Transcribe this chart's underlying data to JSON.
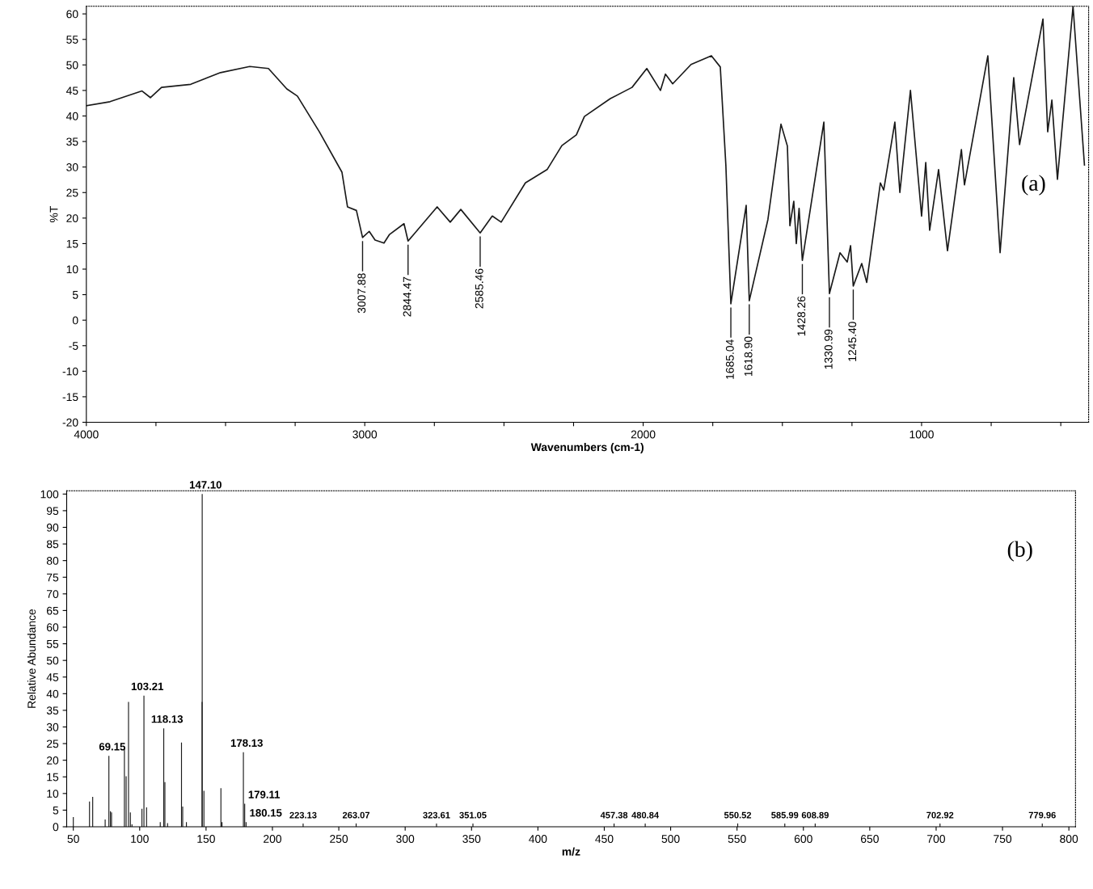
{
  "chart_data": [
    {
      "type": "line",
      "xlabel": "Wavenumbers (cm-1)",
      "ylabel": "%T",
      "color": "#1a1a1a",
      "xlim": [
        4000,
        400
      ],
      "ylim": [
        -20,
        61.5
      ],
      "xticks": [
        4000,
        {
          "value": 3750,
          "label": null
        },
        {
          "value": 3500,
          "label": null
        },
        {
          "value": 3250,
          "label": null
        },
        3000,
        {
          "value": 2750,
          "label": null
        },
        {
          "value": 2500,
          "label": null
        },
        {
          "value": 2250,
          "label": null
        },
        2000,
        {
          "value": 1750,
          "label": null
        },
        {
          "value": 1500,
          "label": null
        },
        {
          "value": 1250,
          "label": null
        },
        1000,
        {
          "value": 750,
          "label": null
        },
        {
          "value": 500,
          "label": null
        }
      ],
      "yticks": [
        -20,
        -15,
        -10,
        -5,
        0,
        5,
        10,
        15,
        20,
        25,
        30,
        35,
        40,
        45,
        50,
        55,
        60
      ],
      "x": [
        4000,
        3915,
        3800,
        3770,
        3730,
        3625,
        3518,
        3413,
        3346,
        3280,
        3242,
        3163,
        3082,
        3062,
        3030,
        3007.88,
        2984,
        2963,
        2931,
        2911,
        2859,
        2844.47,
        2740,
        2693,
        2655,
        2585.46,
        2542,
        2510,
        2423,
        2345,
        2292,
        2240,
        2211,
        2118,
        2040,
        1987,
        1938,
        1920,
        1894,
        1828,
        1755,
        1723,
        1703,
        1685.04,
        1630,
        1618.9,
        1552,
        1505,
        1482,
        1473,
        1459,
        1450,
        1440,
        1428.26,
        1351,
        1330.99,
        1293,
        1267,
        1255,
        1245.4,
        1215,
        1197,
        1148,
        1136,
        1096,
        1078,
        1040,
        1000,
        985,
        971,
        939,
        907,
        857,
        846,
        762,
        718,
        669,
        648,
        564,
        547,
        532,
        512,
        456,
        415
      ],
      "values": [
        42,
        42.8,
        44.9,
        43.6,
        45.6,
        46.2,
        48.5,
        49.7,
        49.3,
        45.3,
        43.9,
        36.9,
        29,
        22.2,
        21.5,
        16.2,
        17.4,
        15.7,
        15.1,
        16.8,
        18.9,
        15.5,
        22.2,
        19.2,
        21.7,
        17.1,
        20.4,
        19.2,
        26.9,
        29.5,
        34.2,
        36.3,
        39.9,
        43.4,
        45.6,
        49.3,
        45,
        48.2,
        46.3,
        50.1,
        51.8,
        49.6,
        30.4,
        3.2,
        22.5,
        3.8,
        19.7,
        38.4,
        34.1,
        18.5,
        23.3,
        15,
        21.9,
        11.7,
        38.8,
        5.2,
        13.2,
        11.4,
        14.6,
        6.7,
        11.1,
        7.4,
        26.9,
        25.5,
        38.8,
        25,
        45,
        20.4,
        30.9,
        17.6,
        29.5,
        13.6,
        33.4,
        26.5,
        51.8,
        13.2,
        47.5,
        34.4,
        59,
        36.9,
        43.1,
        27.6,
        61.5,
        30.4
      ],
      "annotations": [
        {
          "text": "3007.88",
          "x": 3007.88,
          "y": 16.2
        },
        {
          "text": "2844.47",
          "x": 2844.47,
          "y": 15.5
        },
        {
          "text": "2585.46",
          "x": 2585.46,
          "y": 17.1
        },
        {
          "text": "1685.04",
          "x": 1685.04,
          "y": 3.2
        },
        {
          "text": "1618.90",
          "x": 1618.9,
          "y": 3.8
        },
        {
          "text": "1428.26",
          "x": 1428.26,
          "y": 11.7
        },
        {
          "text": "1330.99",
          "x": 1330.99,
          "y": 5.2
        },
        {
          "text": "1245.40",
          "x": 1245.4,
          "y": 6.7
        },
        "(a)"
      ]
    },
    {
      "type": "bar",
      "xlabel": "m/z",
      "ylabel": "Relative Abundance",
      "color": "#1a1a1a",
      "xlim": [
        45,
        805
      ],
      "ylim": [
        0,
        101
      ],
      "xticks": [
        50,
        100,
        150,
        200,
        250,
        300,
        350,
        400,
        450,
        500,
        550,
        600,
        650,
        700,
        750,
        800
      ],
      "yticks": [
        0,
        5,
        10,
        15,
        20,
        25,
        30,
        35,
        40,
        45,
        50,
        55,
        60,
        65,
        70,
        75,
        80,
        85,
        90,
        95,
        100
      ],
      "x": [
        50,
        62.2,
        64.6,
        74,
        76.8,
        78,
        78.8,
        88.5,
        89.8,
        91.6,
        93,
        94.2,
        101.7,
        103.21,
        105.2,
        115.5,
        118.13,
        119,
        121,
        131.5,
        132.4,
        135.2,
        147,
        147.1,
        148.4,
        161.2,
        162,
        178.13,
        179.11,
        180.15,
        223.13,
        263.07,
        323.61,
        351.05,
        457.38,
        480.84,
        550.52,
        585.99,
        608.89,
        702.92,
        779.96
      ],
      "values": [
        2.9,
        7.6,
        9,
        2.2,
        21.3,
        4.7,
        4.3,
        23.8,
        15.2,
        37.5,
        4.3,
        0.7,
        5.4,
        39.4,
        5.8,
        1.4,
        29.6,
        13.4,
        1.1,
        25.3,
        6.1,
        1.4,
        37.5,
        100,
        10.8,
        11.6,
        1.4,
        22.4,
        6.9,
        1.4,
        1,
        1,
        1,
        1,
        1,
        1,
        1,
        1,
        1,
        1,
        1
      ],
      "annotations": [
        {
          "text": "69.15",
          "x": 76.8,
          "y": 21.3
        },
        {
          "text": "103.21",
          "x": 103.21,
          "y": 39.4
        },
        {
          "text": "118.13",
          "x": 118.13,
          "y": 29.6
        },
        {
          "text": "147.10",
          "x": 147.1,
          "y": 100
        },
        {
          "text": "178.13",
          "x": 178.13,
          "y": 22.4
        },
        {
          "text": "179.11",
          "x": 179.11,
          "y": 6.9
        },
        {
          "text": "180.15",
          "x": 180.15,
          "y": 1.4
        },
        {
          "text": "223.13",
          "x": 223.13,
          "y": 1
        },
        {
          "text": "263.07",
          "x": 263.07,
          "y": 1
        },
        {
          "text": "323.61",
          "x": 323.61,
          "y": 1
        },
        {
          "text": "351.05",
          "x": 351.05,
          "y": 1
        },
        {
          "text": "457.38",
          "x": 457.38,
          "y": 1
        },
        {
          "text": "480.84",
          "x": 480.84,
          "y": 1
        },
        {
          "text": "550.52",
          "x": 550.52,
          "y": 1
        },
        {
          "text": "585.99",
          "x": 585.99,
          "y": 1
        },
        {
          "text": "608.89",
          "x": 608.89,
          "y": 1
        },
        {
          "text": "702.92",
          "x": 702.92,
          "y": 1
        },
        {
          "text": "779.96",
          "x": 779.96,
          "y": 1
        },
        "(b)"
      ]
    }
  ]
}
